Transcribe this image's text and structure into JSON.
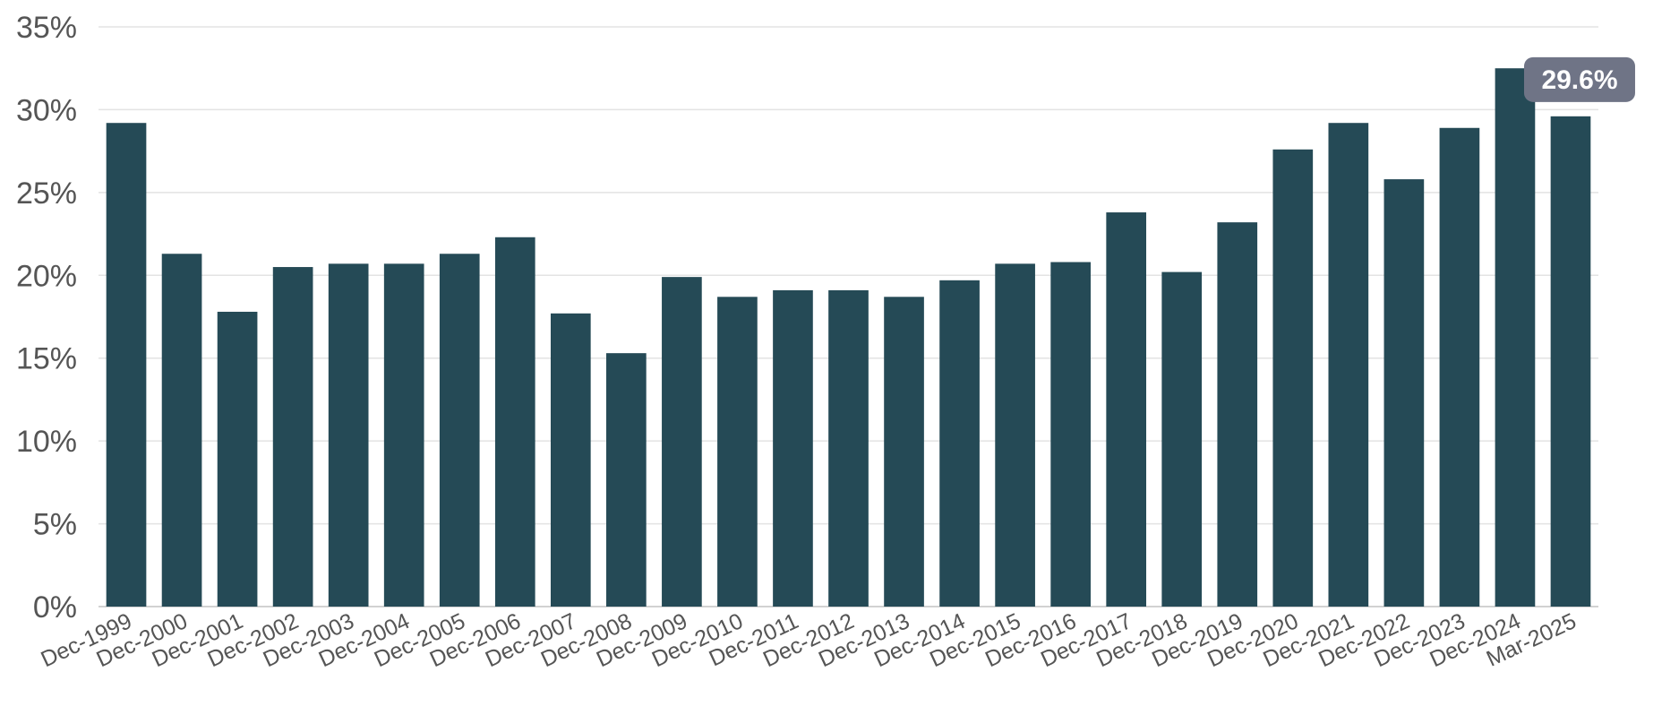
{
  "chart_data": {
    "type": "bar",
    "categories": [
      "Dec-1999",
      "Dec-2000",
      "Dec-2001",
      "Dec-2002",
      "Dec-2003",
      "Dec-2004",
      "Dec-2005",
      "Dec-2006",
      "Dec-2007",
      "Dec-2008",
      "Dec-2009",
      "Dec-2010",
      "Dec-2011",
      "Dec-2012",
      "Dec-2013",
      "Dec-2014",
      "Dec-2015",
      "Dec-2016",
      "Dec-2017",
      "Dec-2018",
      "Dec-2019",
      "Dec-2020",
      "Dec-2021",
      "Dec-2022",
      "Dec-2023",
      "Dec-2024",
      "Mar-2025"
    ],
    "values": [
      29.2,
      21.3,
      17.8,
      20.5,
      20.7,
      20.7,
      21.3,
      22.3,
      17.7,
      15.3,
      19.9,
      18.7,
      19.1,
      19.1,
      18.7,
      19.7,
      20.7,
      20.8,
      23.8,
      20.2,
      23.2,
      27.6,
      29.2,
      25.8,
      28.9,
      32.5,
      29.6
    ],
    "yticks": [
      "0%",
      "5%",
      "10%",
      "15%",
      "20%",
      "25%",
      "30%",
      "35%"
    ],
    "ylim": [
      0,
      35
    ],
    "bar_color": "#254a56",
    "grid": true,
    "title": "",
    "xlabel": "",
    "ylabel": "",
    "callout": {
      "label": "29.6%",
      "category": "Mar-2025",
      "color": "#6f7486"
    }
  }
}
